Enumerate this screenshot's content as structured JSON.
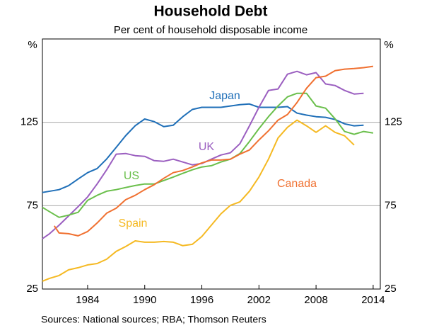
{
  "chart_data": {
    "type": "line",
    "title": "Household Debt",
    "subtitle": "Per cent of household disposable income",
    "y_unit": "%",
    "source": "Sources:  National sources; RBA; Thomson Reuters",
    "xlim": [
      1979.25,
      2014.75
    ],
    "xticks": [
      1984,
      1990,
      1996,
      2002,
      2008,
      2014
    ],
    "ylim": [
      25,
      175
    ],
    "yticks": [
      25,
      75,
      125
    ],
    "grid": true,
    "series": [
      {
        "name": "Japan",
        "color": "#1f6fb8",
        "x": [
          1979.25,
          1981,
          1982,
          1983,
          1984,
          1985,
          1986,
          1987,
          1988,
          1989,
          1990,
          1991,
          1992,
          1993,
          1994,
          1995,
          1996,
          1997,
          1998,
          1999,
          2000,
          2001,
          2002,
          2003,
          2004,
          2005,
          2006,
          2007,
          2008,
          2009,
          2010,
          2011,
          2012,
          2013
        ],
        "values": [
          82.9,
          84.6,
          87,
          91,
          94.8,
          97.3,
          103,
          110,
          117,
          123,
          127,
          125.4,
          122.4,
          123.3,
          128.4,
          132.7,
          134,
          134,
          134,
          134.8,
          135.6,
          136,
          134,
          134,
          134,
          134.4,
          130.5,
          129.3,
          128.4,
          128,
          126.7,
          124.1,
          122.9,
          123.3
        ]
      },
      {
        "name": "UK",
        "color": "#9b5fc0",
        "x": [
          1979.25,
          1980,
          1981,
          1982,
          1983,
          1984,
          1985,
          1986,
          1987,
          1988,
          1989,
          1990,
          1991,
          1992,
          1993,
          1994,
          1995,
          1996,
          1997,
          1998,
          1999,
          2000,
          2001,
          2002,
          2003,
          2004,
          2005,
          2006,
          2007,
          2008,
          2009,
          2010,
          2011,
          2012,
          2013
        ],
        "values": [
          55.2,
          58.2,
          63.3,
          68.8,
          74.4,
          80.3,
          88,
          96.5,
          105.9,
          106.3,
          105,
          104.6,
          102,
          101.6,
          102.9,
          101.2,
          99.5,
          100.3,
          102.9,
          105.4,
          106.7,
          112.2,
          122.9,
          134,
          144.1,
          145,
          153.9,
          155.6,
          153.5,
          154.8,
          148,
          147.1,
          144.1,
          142,
          142.4
        ]
      },
      {
        "name": "US",
        "color": "#6abf4b",
        "x": [
          1979.25,
          1980,
          1981,
          1982,
          1983,
          1984,
          1985,
          1986,
          1987,
          1988,
          1989,
          1990,
          1991,
          1992,
          1993,
          1994,
          1995,
          1996,
          1997,
          1998,
          1999,
          2000,
          2001,
          2002,
          2003,
          2004,
          2005,
          2006,
          2007,
          2008,
          2009,
          2010,
          2011,
          2012,
          2013,
          2014
        ],
        "values": [
          74,
          71.4,
          68,
          69.3,
          71,
          78.2,
          81.2,
          83.7,
          84.6,
          85.9,
          87.1,
          88,
          88,
          90.1,
          92.2,
          94.4,
          96.5,
          98.2,
          99,
          101.2,
          102.9,
          106.3,
          113.5,
          121.2,
          128.4,
          134.8,
          140.3,
          142.4,
          142.4,
          134.8,
          133.5,
          127.1,
          119.5,
          117.8,
          119.5,
          118.6
        ]
      },
      {
        "name": "Canada",
        "color": "#f07030",
        "x": [
          1980.5,
          1981,
          1982,
          1983,
          1984,
          1985,
          1986,
          1987,
          1988,
          1989,
          1990,
          1991,
          1992,
          1993,
          1994,
          1995,
          1996,
          1997,
          1998,
          1999,
          2000,
          2001,
          2002,
          2003,
          2004,
          2005,
          2006,
          2007,
          2008,
          2009,
          2010,
          2011,
          2012,
          2013,
          2014
        ],
        "values": [
          62.9,
          58.6,
          58.2,
          56.9,
          59.5,
          64.6,
          70.5,
          73.5,
          78.6,
          81.2,
          84.6,
          87.6,
          91.4,
          94.8,
          96.1,
          98.2,
          100.7,
          102.4,
          102.4,
          102.9,
          105.9,
          108.4,
          114.4,
          119.9,
          126.3,
          129.7,
          136.9,
          145.4,
          151.8,
          152.7,
          156,
          156.9,
          157.3,
          157.8,
          158.6
        ]
      },
      {
        "name": "Spain",
        "color": "#f5b922",
        "x": [
          1979.25,
          1980,
          1981,
          1982,
          1983,
          1984,
          1985,
          1986,
          1987,
          1988,
          1989,
          1990,
          1991,
          1992,
          1993,
          1994,
          1995,
          1996,
          1997,
          1998,
          1999,
          2000,
          2001,
          2002,
          2003,
          2004,
          2005,
          2006,
          2007,
          2008,
          2009,
          2010,
          2011,
          2012
        ],
        "values": [
          29.7,
          31.4,
          33.1,
          36.5,
          37.8,
          39.5,
          40.3,
          42.9,
          47.6,
          50.5,
          53.9,
          53.1,
          53.1,
          53.5,
          53.1,
          51,
          51.8,
          56.5,
          63.3,
          70.1,
          75.2,
          77.3,
          83.7,
          92.2,
          102.9,
          115.6,
          122,
          126.3,
          122.9,
          119,
          122.9,
          119,
          116.9,
          111.4
        ]
      }
    ]
  }
}
